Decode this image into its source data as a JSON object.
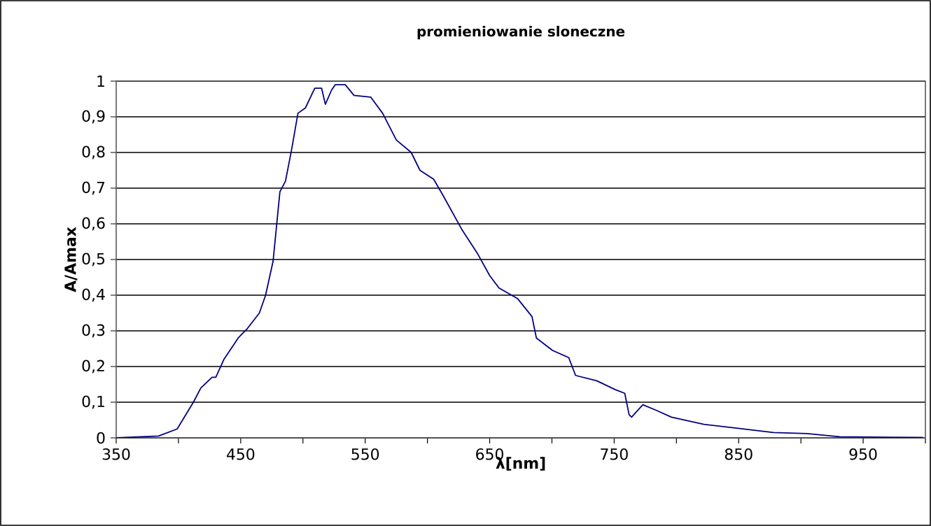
{
  "chart_data": {
    "type": "line",
    "title": "promieniowanie sloneczne",
    "xlabel": "λ[nm]",
    "ylabel": "A/Amax",
    "xlim": [
      350,
      1000
    ],
    "xticks": [
      350,
      {
        "value": 400,
        "label": null
      },
      450,
      {
        "value": 500,
        "label": null
      },
      550,
      {
        "value": 600,
        "label": null
      },
      650,
      {
        "value": 700,
        "label": null
      },
      750,
      {
        "value": 800,
        "label": null
      },
      850,
      {
        "value": 900,
        "label": null
      },
      950,
      {
        "value": 1000,
        "label": null
      }
    ],
    "ylim": [
      0,
      1
    ],
    "yticks": [
      0,
      {
        "value": 0.1,
        "label": "0,1"
      },
      {
        "value": 0.2,
        "label": "0,2"
      },
      {
        "value": 0.3,
        "label": "0,3"
      },
      {
        "value": 0.4,
        "label": "0,4"
      },
      {
        "value": 0.5,
        "label": "0,5"
      },
      {
        "value": 0.6,
        "label": "0,6"
      },
      {
        "value": 0.7,
        "label": "0,7"
      },
      {
        "value": 0.8,
        "label": "0,8"
      },
      {
        "value": 0.9,
        "label": "0,9"
      },
      1
    ],
    "grid": "y",
    "marker": "none",
    "line_style": "solid",
    "series": [
      {
        "color": "#000080",
        "x": [
          350,
          384,
          399,
          412,
          418,
          427,
          430,
          436.5,
          448,
          455,
          465,
          470,
          476,
          481.5,
          486,
          491,
          496,
          502,
          509.5,
          515,
          518,
          523,
          526,
          534,
          541,
          554.5,
          564,
          575,
          587,
          594,
          605,
          612.5,
          627.5,
          640.5,
          650,
          657.5,
          672.5,
          684,
          687.5,
          700.5,
          713.5,
          719,
          736,
          751,
          758.5,
          762,
          764,
          773,
          784,
          796,
          822,
          848.5,
          878,
          905,
          931,
          998
        ],
        "values": [
          0,
          0.005,
          0.025,
          0.1,
          0.14,
          0.17,
          0.17,
          0.22,
          0.28,
          0.305,
          0.35,
          0.4,
          0.495,
          0.69,
          0.72,
          0.81,
          0.91,
          0.925,
          0.98,
          0.98,
          0.935,
          0.975,
          0.99,
          0.99,
          0.96,
          0.955,
          0.91,
          0.835,
          0.8,
          0.75,
          0.725,
          0.68,
          0.585,
          0.515,
          0.455,
          0.42,
          0.39,
          0.34,
          0.28,
          0.245,
          0.225,
          0.175,
          0.16,
          0.135,
          0.125,
          0.065,
          0.058,
          0.093,
          0.077,
          0.058,
          0.038,
          0.027,
          0.015,
          0.012,
          0.003,
          0.001
        ]
      }
    ]
  }
}
